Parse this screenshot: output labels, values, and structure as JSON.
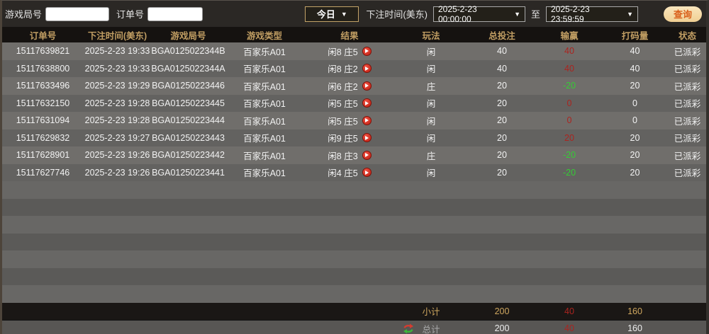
{
  "toolbar": {
    "game_round_label": "游戏局号",
    "order_no_label": "订单号",
    "range_select_value": "今日",
    "bet_time_label": "下注时间(美东)",
    "start_time": "2025-2-23 00:00:00",
    "to_label": "至",
    "end_time": "2025-2-23 23:59:59",
    "query_button_label": "查询",
    "caret": "▼"
  },
  "table": {
    "columns": [
      "订单号",
      "下注时间(美东)",
      "游戏局号",
      "游戏类型",
      "结果",
      "玩法",
      "总投注",
      "输赢",
      "打码量",
      "状态"
    ],
    "rows": [
      {
        "order": "15117639821",
        "time": "2025-2-23 19:33",
        "round": "BGA0125022344B",
        "type": "百家乐A01",
        "result": "闲8 庄5",
        "play": "闲",
        "bet": "40",
        "win": "40",
        "win_color": "red",
        "rolling": "40",
        "status": "已派彩"
      },
      {
        "order": "15117638800",
        "time": "2025-2-23 19:33",
        "round": "BGA0125022344A",
        "type": "百家乐A01",
        "result": "闲8 庄2",
        "play": "闲",
        "bet": "40",
        "win": "40",
        "win_color": "red",
        "rolling": "40",
        "status": "已派彩"
      },
      {
        "order": "15117633496",
        "time": "2025-2-23 19:29",
        "round": "BGA01250223446",
        "type": "百家乐A01",
        "result": "闲6 庄2",
        "play": "庄",
        "bet": "20",
        "win": "-20",
        "win_color": "green",
        "rolling": "20",
        "status": "已派彩"
      },
      {
        "order": "15117632150",
        "time": "2025-2-23 19:28",
        "round": "BGA01250223445",
        "type": "百家乐A01",
        "result": "闲5 庄5",
        "play": "闲",
        "bet": "20",
        "win": "0",
        "win_color": "red",
        "rolling": "0",
        "status": "已派彩"
      },
      {
        "order": "15117631094",
        "time": "2025-2-23 19:28",
        "round": "BGA01250223444",
        "type": "百家乐A01",
        "result": "闲5 庄5",
        "play": "闲",
        "bet": "20",
        "win": "0",
        "win_color": "red",
        "rolling": "0",
        "status": "已派彩"
      },
      {
        "order": "15117629832",
        "time": "2025-2-23 19:27",
        "round": "BGA01250223443",
        "type": "百家乐A01",
        "result": "闲9 庄5",
        "play": "闲",
        "bet": "20",
        "win": "20",
        "win_color": "red",
        "rolling": "20",
        "status": "已派彩"
      },
      {
        "order": "15117628901",
        "time": "2025-2-23 19:26",
        "round": "BGA01250223442",
        "type": "百家乐A01",
        "result": "闲8 庄3",
        "play": "庄",
        "bet": "20",
        "win": "-20",
        "win_color": "green",
        "rolling": "20",
        "status": "已派彩"
      },
      {
        "order": "15117627746",
        "time": "2025-2-23 19:26",
        "round": "BGA01250223441",
        "type": "百家乐A01",
        "result": "闲4 庄5",
        "play": "闲",
        "bet": "20",
        "win": "-20",
        "win_color": "green",
        "rolling": "20",
        "status": "已派彩"
      }
    ],
    "empty_row_count": 7
  },
  "summary": {
    "subtotal_label": "小计",
    "subtotal": {
      "bet": "200",
      "win": "40",
      "rolling": "160"
    },
    "total_label": "总计",
    "total": {
      "bet": "200",
      "win": "40",
      "rolling": "160"
    }
  },
  "colors": {
    "accent_gold": "#c19e63",
    "win_red": "#ab241f",
    "loss_green": "#35cc35",
    "query_button_bg": "#f3d9a4",
    "query_button_text": "#d95f1a"
  }
}
